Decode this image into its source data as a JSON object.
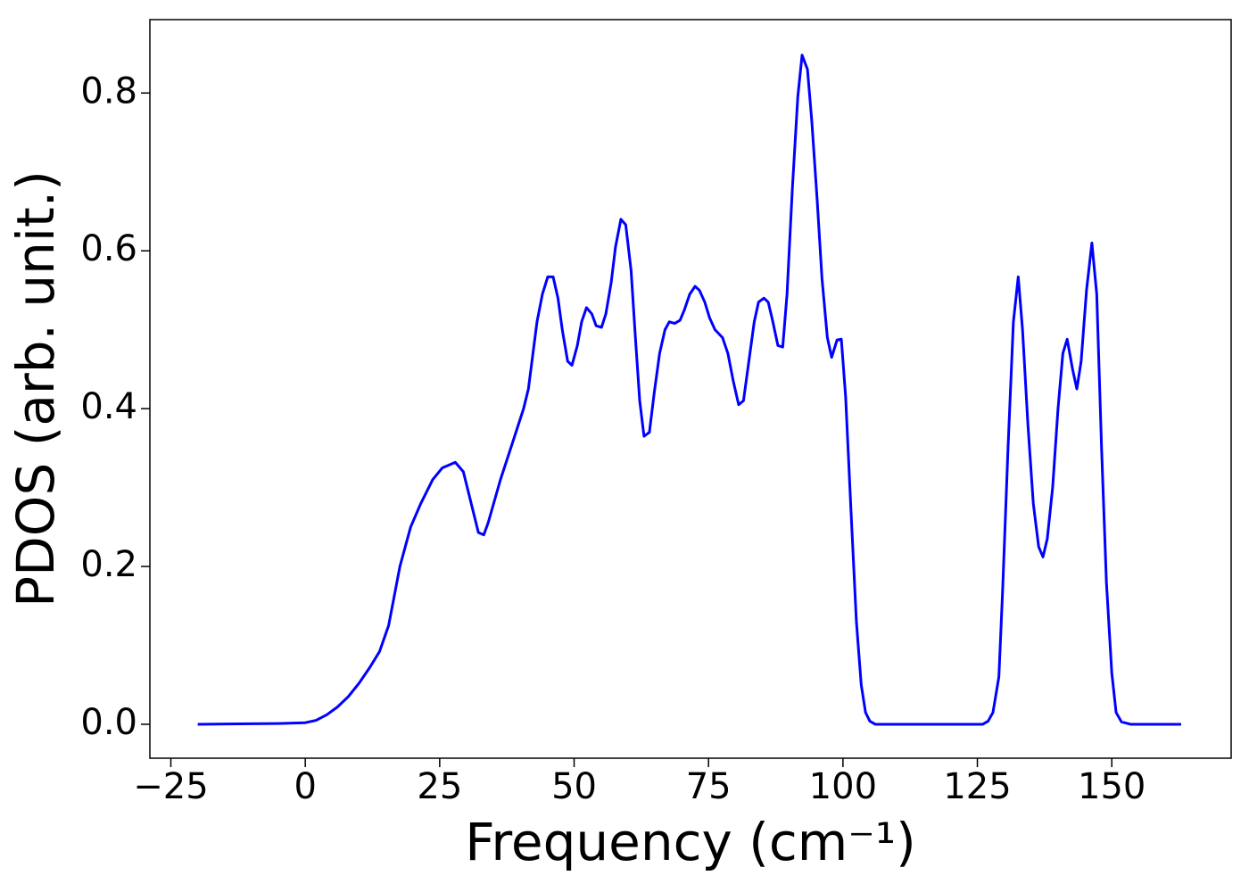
{
  "chart_data": {
    "type": "line",
    "xlabel": "Frequency (cm⁻¹)",
    "ylabel": "PDOS (arb. unit.)",
    "xlim": [
      -28.9,
      172.2
    ],
    "ylim": [
      -0.043,
      0.893
    ],
    "xticks": [
      {
        "value": -25,
        "label": "−25"
      },
      0,
      25,
      50,
      75,
      100,
      125,
      150
    ],
    "yticks": [
      {
        "value": 0,
        "label": "0.0"
      },
      0.2,
      0.4,
      0.6,
      0.8
    ],
    "grid": false,
    "series": [
      {
        "color": "#0000ff",
        "x": [
          -20,
          -5,
          0,
          2,
          4,
          6,
          8,
          10,
          12,
          13.8,
          15.5,
          17.6,
          19.6,
          21.5,
          23.7,
          25.5,
          27.9,
          29.4,
          31.4,
          32.2,
          33.2,
          34,
          36.3,
          38.7,
          40.6,
          41.5,
          43.1,
          44.1,
          45.1,
          46.1,
          47,
          47.8,
          48.8,
          49.6,
          50.6,
          51.4,
          52.3,
          53.3,
          54.1,
          55.1,
          55.9,
          56.9,
          57.7,
          58.7,
          59.6,
          60.6,
          61.4,
          62.2,
          63,
          64,
          64.9,
          65.9,
          66.9,
          67.7,
          68.7,
          69.7,
          70.5,
          71.5,
          72.5,
          73.3,
          74.3,
          75.2,
          76.2,
          77.6,
          78.6,
          79.6,
          80.6,
          81.5,
          82.5,
          83.5,
          84.3,
          85.3,
          86.1,
          86.9,
          87.9,
          88.8,
          89.6,
          90.6,
          91.6,
          92.4,
          93.4,
          94.2,
          95.2,
          96.1,
          97.1,
          97.9,
          98.9,
          99.7,
          100.5,
          101.5,
          102.5,
          103.4,
          104.2,
          105,
          106,
          126,
          127,
          127.9,
          129,
          129.7,
          130.7,
          131.7,
          132.6,
          133.4,
          134.4,
          135.4,
          136.4,
          137.2,
          138,
          139,
          140,
          140.9,
          141.7,
          142.7,
          143.5,
          144.3,
          145.3,
          146.3,
          147.2,
          148.1,
          149,
          150,
          150.8,
          151.8,
          153.5,
          162.9
        ],
        "values": [
          0,
          0.001,
          0.002,
          0.005,
          0.012,
          0.022,
          0.035,
          0.052,
          0.072,
          0.092,
          0.125,
          0.2,
          0.25,
          0.28,
          0.31,
          0.325,
          0.332,
          0.32,
          0.265,
          0.243,
          0.24,
          0.255,
          0.31,
          0.36,
          0.4,
          0.425,
          0.51,
          0.545,
          0.567,
          0.567,
          0.54,
          0.5,
          0.46,
          0.455,
          0.48,
          0.51,
          0.528,
          0.52,
          0.505,
          0.503,
          0.52,
          0.56,
          0.605,
          0.64,
          0.633,
          0.575,
          0.49,
          0.41,
          0.365,
          0.37,
          0.42,
          0.47,
          0.5,
          0.51,
          0.508,
          0.512,
          0.525,
          0.545,
          0.555,
          0.55,
          0.535,
          0.515,
          0.5,
          0.49,
          0.47,
          0.435,
          0.405,
          0.41,
          0.46,
          0.51,
          0.535,
          0.54,
          0.535,
          0.512,
          0.48,
          0.478,
          0.545,
          0.68,
          0.795,
          0.848,
          0.83,
          0.765,
          0.665,
          0.565,
          0.49,
          0.465,
          0.487,
          0.488,
          0.415,
          0.27,
          0.13,
          0.05,
          0.015,
          0.004,
          0,
          0,
          0.004,
          0.015,
          0.06,
          0.17,
          0.35,
          0.51,
          0.567,
          0.5,
          0.38,
          0.28,
          0.225,
          0.212,
          0.235,
          0.3,
          0.4,
          0.47,
          0.488,
          0.45,
          0.425,
          0.46,
          0.55,
          0.61,
          0.545,
          0.35,
          0.18,
          0.065,
          0.015,
          0.003,
          0,
          0
        ]
      }
    ]
  }
}
